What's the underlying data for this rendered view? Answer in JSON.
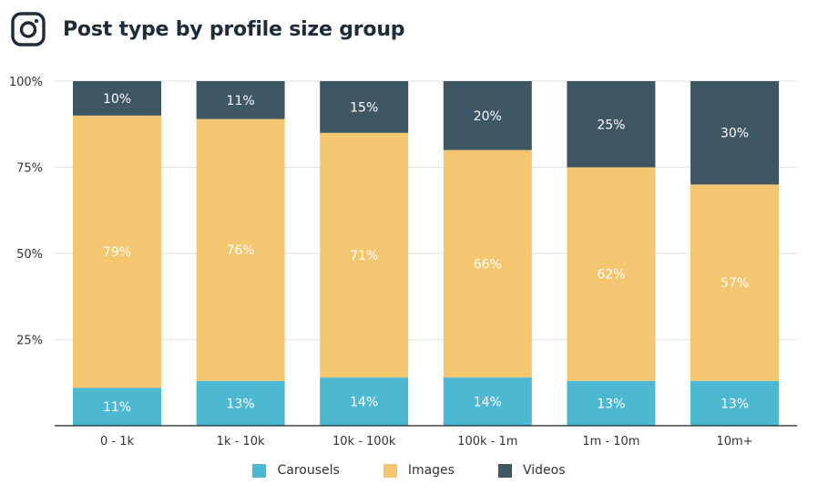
{
  "header": {
    "icon": "instagram-icon",
    "title": "Post type by profile size group"
  },
  "colors": {
    "carousels": "#4db8d1",
    "images": "#f3c66f",
    "videos": "#3f5663",
    "grid": "#e4e4e4",
    "axis": "#222222"
  },
  "chart_data": {
    "type": "bar",
    "stacked": true,
    "title": "Post type by profile size group",
    "xlabel": "",
    "ylabel": "",
    "ylim": [
      0,
      100
    ],
    "yticks": [
      "100%",
      "75%",
      "50%",
      "25%"
    ],
    "ytick_values": [
      100,
      75,
      50,
      25
    ],
    "grid": true,
    "legend_position": "bottom",
    "categories": [
      "0 - 1k",
      "1k - 10k",
      "10k - 100k",
      "100k - 1m",
      "1m - 10m",
      "10m+"
    ],
    "series": [
      {
        "name": "Carousels",
        "key": "carousels",
        "values": [
          11,
          13,
          14,
          14,
          13,
          13
        ],
        "labels": [
          "11%",
          "13%",
          "14%",
          "14%",
          "13%",
          "13%"
        ]
      },
      {
        "name": "Images",
        "key": "images",
        "values": [
          79,
          76,
          71,
          66,
          62,
          57
        ],
        "labels": [
          "79%",
          "76%",
          "71%",
          "66%",
          "62%",
          "57%"
        ]
      },
      {
        "name": "Videos",
        "key": "videos",
        "values": [
          10,
          11,
          15,
          20,
          25,
          30
        ],
        "labels": [
          "10%",
          "11%",
          "15%",
          "20%",
          "25%",
          "30%"
        ]
      }
    ]
  }
}
